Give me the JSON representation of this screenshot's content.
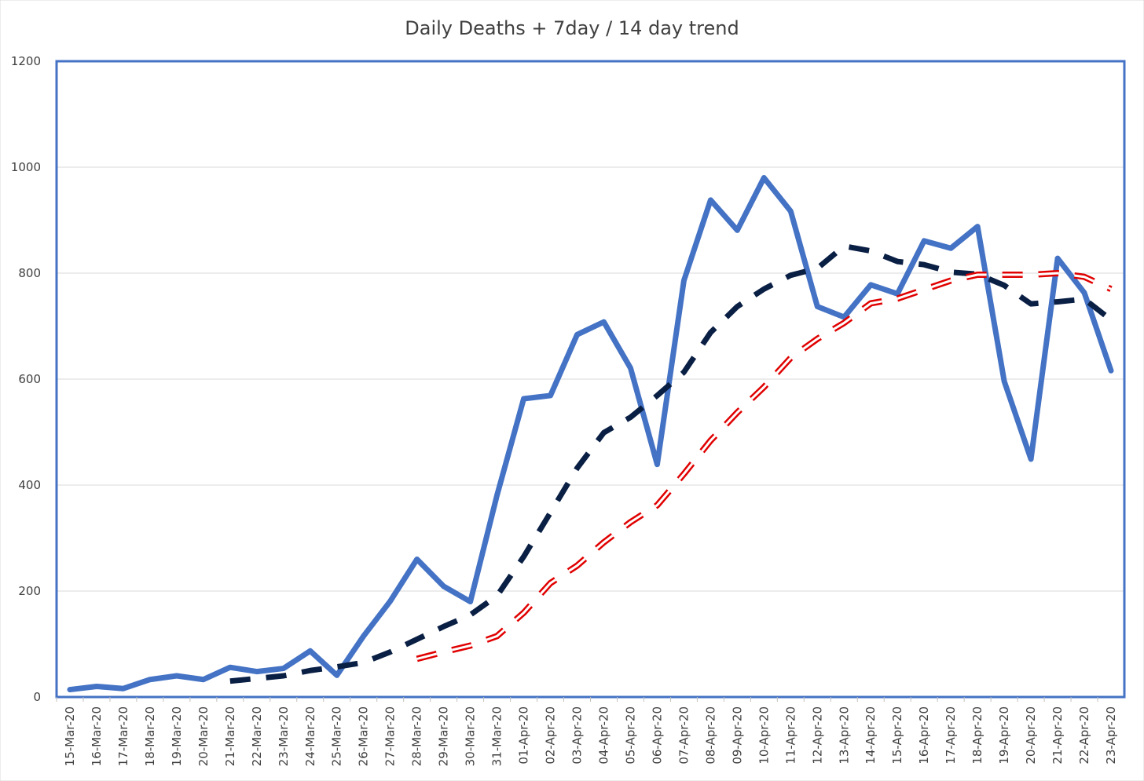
{
  "chart_data": {
    "type": "line",
    "title": "Daily Deaths + 7day / 14 day trend",
    "xlabel": "",
    "ylabel": "",
    "ylim": [
      0,
      1200
    ],
    "yticks": [
      0,
      200,
      400,
      600,
      800,
      1000,
      1200
    ],
    "grid": true,
    "legend": "none",
    "categories": [
      "15-Mar-20",
      "16-Mar-20",
      "17-Mar-20",
      "18-Mar-20",
      "19-Mar-20",
      "20-Mar-20",
      "21-Mar-20",
      "22-Mar-20",
      "23-Mar-20",
      "24-Mar-20",
      "25-Mar-20",
      "26-Mar-20",
      "27-Mar-20",
      "28-Mar-20",
      "29-Mar-20",
      "30-Mar-20",
      "31-Mar-20",
      "01-Apr-20",
      "02-Apr-20",
      "03-Apr-20",
      "04-Apr-20",
      "05-Apr-20",
      "06-Apr-20",
      "07-Apr-20",
      "08-Apr-20",
      "09-Apr-20",
      "10-Apr-20",
      "11-Apr-20",
      "12-Apr-20",
      "13-Apr-20",
      "14-Apr-20",
      "15-Apr-20",
      "16-Apr-20",
      "17-Apr-20",
      "18-Apr-20",
      "19-Apr-20",
      "20-Apr-20",
      "21-Apr-20",
      "22-Apr-20",
      "23-Apr-20"
    ],
    "series": [
      {
        "style": "solid",
        "color": "#4472C4",
        "values": [
          14,
          20,
          16,
          33,
          40,
          33,
          56,
          48,
          54,
          87,
          41,
          115,
          181,
          260,
          209,
          180,
          381,
          563,
          569,
          684,
          708,
          621,
          439,
          786,
          938,
          881,
          980,
          917,
          737,
          717,
          778,
          761,
          861,
          847,
          888,
          596,
          449,
          828,
          763,
          616
        ]
      },
      {
        "style": "dashed",
        "color": "#0A1F44",
        "values": [
          null,
          null,
          null,
          null,
          null,
          null,
          30,
          35,
          40,
          50,
          57,
          65,
          85,
          109,
          133,
          155,
          191,
          265,
          348,
          432,
          499,
          528,
          569,
          613,
          688,
          737,
          770,
          796,
          809,
          851,
          842,
          822,
          816,
          802,
          798,
          777,
          742,
          746,
          751,
          712
        ]
      },
      {
        "style": "double-dashed",
        "color": "#E00000",
        "values": [
          null,
          null,
          null,
          null,
          null,
          null,
          null,
          null,
          null,
          null,
          null,
          null,
          null,
          72,
          85,
          97,
          115,
          159,
          215,
          248,
          292,
          330,
          362,
          421,
          484,
          537,
          585,
          640,
          676,
          706,
          743,
          752,
          769,
          786,
          797,
          797,
          797,
          800,
          793,
          770
        ]
      }
    ]
  }
}
